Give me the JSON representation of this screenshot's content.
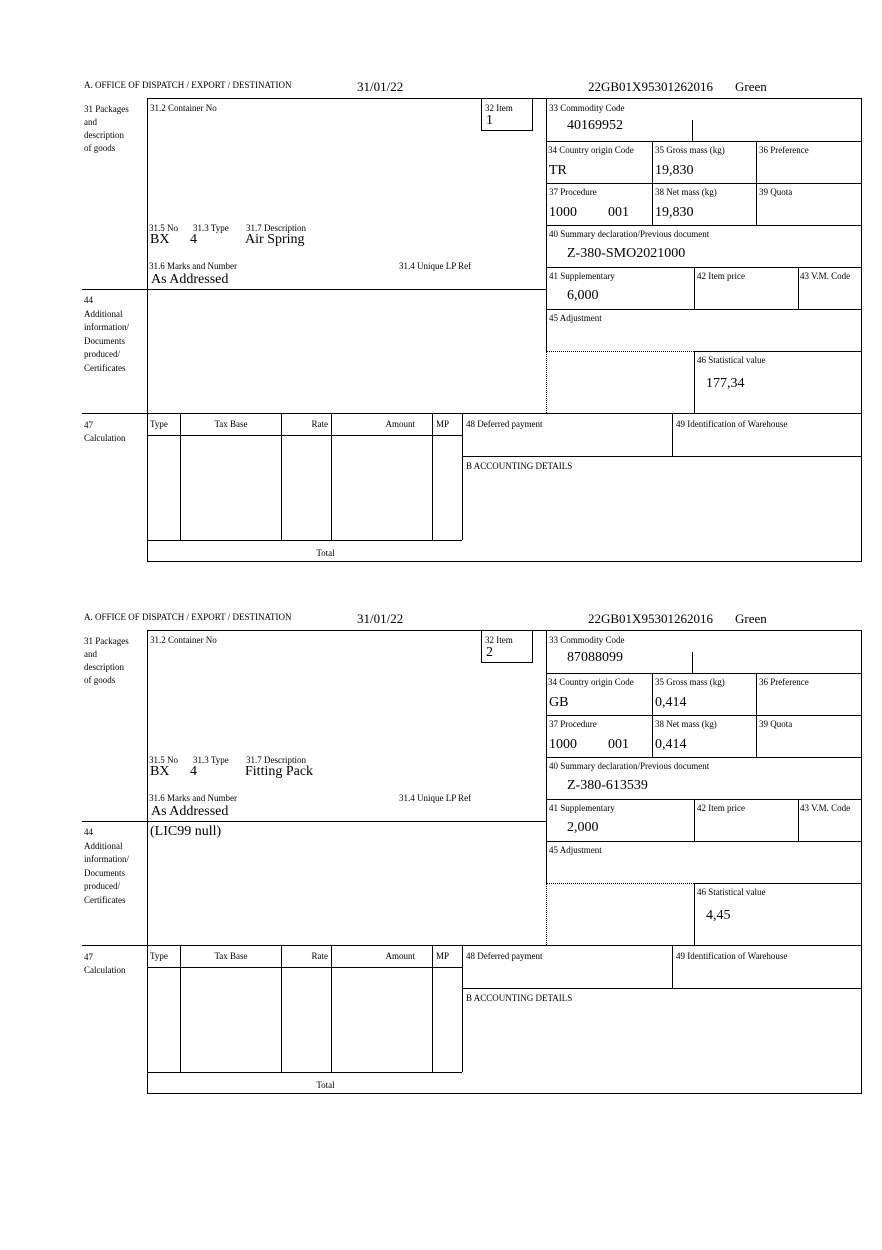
{
  "labels": {
    "office": "A.  OFFICE OF DISPATCH / EXPORT / DESTINATION",
    "l31": [
      "31 Packages",
      "and",
      "description",
      "of goods"
    ],
    "l31_2": "31.2 Container No",
    "l32": "32 Item",
    "l33": "33 Commodity Code",
    "l34": "34 Country origin Code",
    "l35": "35 Gross mass (kg)",
    "l36": "36 Preference",
    "l37": "37 Procedure",
    "l38": "38 Net mass (kg)",
    "l39": "39 Quota",
    "l40": "40 Summary declaration/Previous document",
    "l41": "41 Supplementary",
    "l42": "42 Item price",
    "l43": "43 V.M. Code",
    "l45": "45 Adjustment",
    "l46": "46 Statistical value",
    "l31_5": "31.5 No",
    "l31_3": "31.3 Type",
    "l31_7": "31.7 Description",
    "l31_6": "31.6 Marks and Number",
    "l31_4": "31.4 Unique LP Ref",
    "l44": [
      "44",
      "Additional",
      "information/",
      "Documents",
      "produced/",
      "Certificates"
    ],
    "l47": [
      "47",
      "Calculation"
    ],
    "calc_cols": [
      "Type",
      "Tax Base",
      "Rate",
      "Amount",
      "MP"
    ],
    "total": "Total",
    "l48": "48 Deferred payment",
    "l49": "49 Identification of Warehouse",
    "b": "B ACCOUNTING DETAILS"
  },
  "forms": [
    {
      "date": "31/01/22",
      "reference": "22GB01X95301262016",
      "route": "Green",
      "item": "1",
      "commodity_code": "40169952",
      "country_origin": "TR",
      "gross_mass": "19,830",
      "procedure": "1000",
      "procedure_suffix": "001",
      "net_mass": "19,830",
      "summary_doc": "Z-380-SMO2021000",
      "supplementary": "6,000",
      "statistical_value": "177,34",
      "pkg_no": "BX",
      "pkg_type": "4",
      "description": "Air Spring",
      "marks": "As Addressed",
      "additional_info": ""
    },
    {
      "date": "31/01/22",
      "reference": "22GB01X95301262016",
      "route": "Green",
      "item": "2",
      "commodity_code": "87088099",
      "country_origin": "GB",
      "gross_mass": "0,414",
      "procedure": "1000",
      "procedure_suffix": "001",
      "net_mass": "0,414",
      "summary_doc": "Z-380-613539",
      "supplementary": "2,000",
      "statistical_value": "4,45",
      "pkg_no": "BX",
      "pkg_type": "4",
      "description": "Fitting Pack",
      "marks": "As Addressed",
      "additional_info": "(LIC99 null)"
    }
  ]
}
